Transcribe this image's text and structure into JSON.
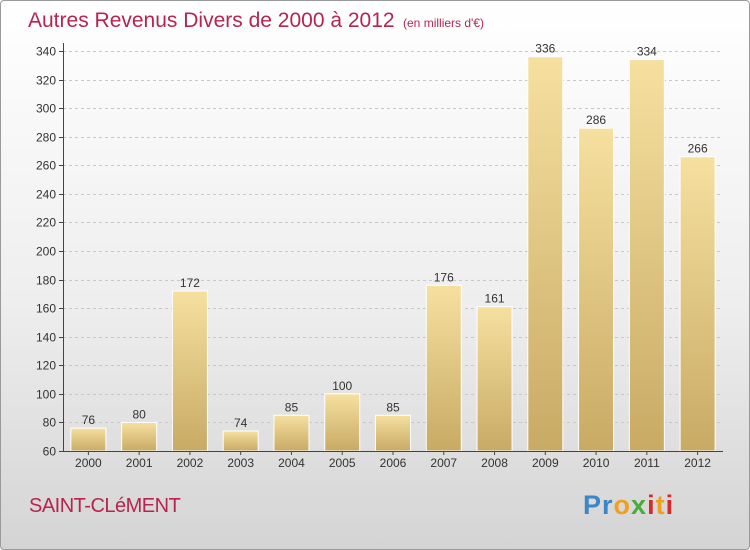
{
  "header": {
    "title": "Autres Revenus Divers de 2000 à 2012",
    "subtitle": "(en milliers d'€)"
  },
  "footer": {
    "commune": "SAINT-CLéMENT",
    "brand": "Proxiti",
    "brand_colors": [
      "#3a86c8",
      "#3a86c8",
      "#f0a020",
      "#4aaa3c",
      "#d92a2a",
      "#f0a020",
      "#d92a2a"
    ]
  },
  "colors": {
    "accent": "#b8244f",
    "bar_light": "#f6e0a0",
    "bar_dark": "#c8aa64",
    "grid": "#c8c8c8",
    "axis": "#444444"
  },
  "chart_data": {
    "type": "bar",
    "title": "Autres Revenus Divers de 2000 à 2012",
    "subtitle": "(en milliers d'€)",
    "categories": [
      "2000",
      "2001",
      "2002",
      "2003",
      "2004",
      "2005",
      "2006",
      "2007",
      "2008",
      "2009",
      "2010",
      "2011",
      "2012"
    ],
    "values": [
      76,
      80,
      172,
      74,
      85,
      100,
      85,
      176,
      161,
      336,
      286,
      334,
      266
    ],
    "data_labels": [
      "76",
      "80",
      "172",
      "74",
      "85",
      "100",
      "85",
      "176",
      "161",
      "336",
      "286",
      "334",
      "266"
    ],
    "ylim": [
      60,
      340
    ],
    "yticks": [
      60,
      80,
      100,
      120,
      140,
      160,
      180,
      200,
      220,
      240,
      260,
      280,
      300,
      320,
      340
    ],
    "grid": true,
    "xlabel": "",
    "ylabel": ""
  }
}
